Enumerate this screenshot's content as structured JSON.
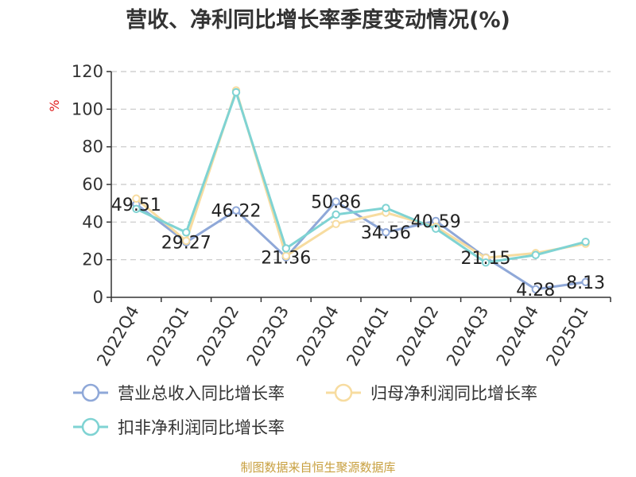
{
  "chart_data": {
    "type": "line",
    "title": "营收、净利同比增长率季度变动情况(%)",
    "ylabel": "%",
    "categories": [
      "2022Q4",
      "2023Q1",
      "2023Q2",
      "2023Q3",
      "2023Q4",
      "2024Q1",
      "2024Q2",
      "2024Q3",
      "2024Q4",
      "2025Q1"
    ],
    "ylim": [
      0,
      120
    ],
    "yticks": [
      0,
      20,
      40,
      60,
      80,
      100,
      120
    ],
    "grid": true,
    "legend_position": "bottom",
    "series": [
      {
        "name": "营业总收入同比增长率",
        "color": "#8fa8d8",
        "values": [
          49.51,
          29.27,
          46.22,
          21.36,
          50.86,
          34.56,
          40.59,
          21.15,
          4.28,
          8.13
        ],
        "labels": [
          "49.51",
          "29.27",
          "46.22",
          "21.36",
          "50.86",
          "34.56",
          "40.59",
          "21.15",
          "4.28",
          "8.13"
        ]
      },
      {
        "name": "归母净利润同比增长率",
        "color": "#f7dca0",
        "values": [
          52.5,
          30.0,
          110.0,
          22.0,
          39.0,
          45.0,
          37.5,
          21.0,
          23.5,
          28.5
        ]
      },
      {
        "name": "扣非净利润同比增长率",
        "color": "#7fd3d3",
        "values": [
          47.0,
          34.5,
          109.0,
          26.0,
          44.0,
          47.5,
          36.5,
          18.5,
          22.5,
          29.5
        ]
      }
    ]
  },
  "source": "制图数据来自恒生聚源数据库"
}
